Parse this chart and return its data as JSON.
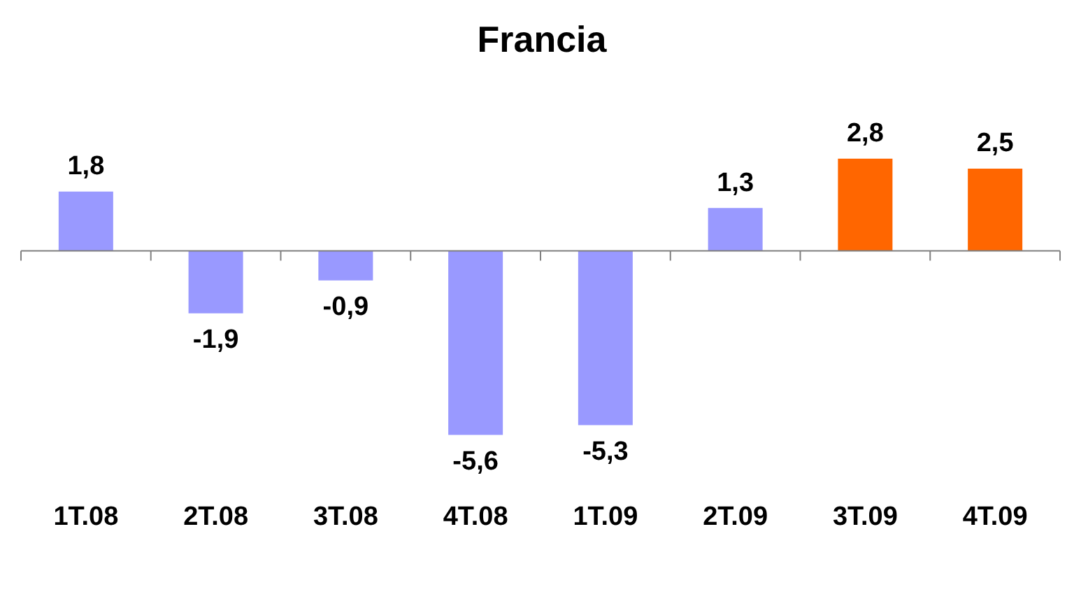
{
  "chart_data": {
    "type": "bar",
    "title": "Francia",
    "categories": [
      "1T.08",
      "2T.08",
      "3T.08",
      "4T.08",
      "1T.09",
      "2T.09",
      "3T.09",
      "4T.09"
    ],
    "values": [
      1.8,
      -1.9,
      -0.9,
      -5.6,
      -5.3,
      1.3,
      2.8,
      2.5
    ],
    "colors": [
      "#9999ff",
      "#9999ff",
      "#9999ff",
      "#9999ff",
      "#9999ff",
      "#9999ff",
      "#ff6600",
      "#ff6600"
    ],
    "value_labels": [
      "1,8",
      "-1,9",
      "-0,9",
      "-5,6",
      "-5,3",
      "1,3",
      "2,8",
      "2,5"
    ]
  }
}
